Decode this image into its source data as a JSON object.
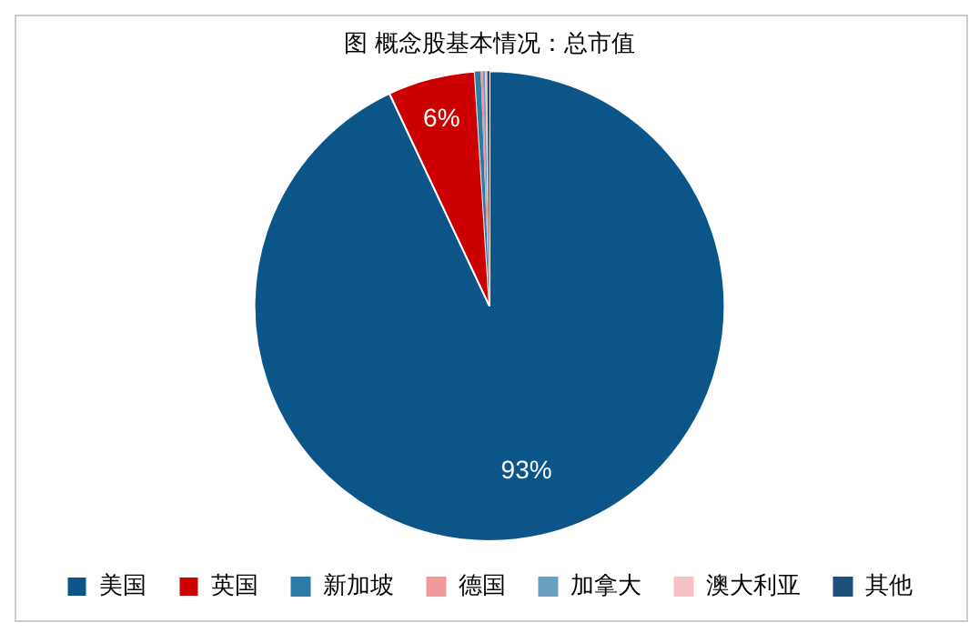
{
  "chart_data": {
    "type": "pie",
    "title": "图 概念股基本情况：总市值",
    "categories": [
      "美国",
      "英国",
      "新加坡",
      "德国",
      "加拿大",
      "澳大利亚",
      "其他"
    ],
    "values": [
      93,
      6,
      0.4,
      0.15,
      0.15,
      0.15,
      0.15
    ],
    "colors": [
      "#0b5588",
      "#cc0000",
      "#2e7ba6",
      "#ee9a9a",
      "#6a9fc0",
      "#f4c2c4",
      "#1f4e79"
    ],
    "value_labels": [
      "93%",
      "6%",
      null,
      null,
      null,
      null,
      null
    ],
    "legend": "bottom"
  }
}
